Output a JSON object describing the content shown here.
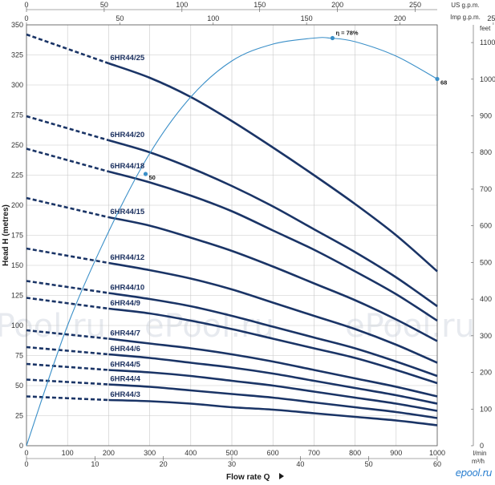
{
  "chart_data": {
    "type": "line",
    "xlabel": "Flow rate Q",
    "ylabel": "Head H  (metres)",
    "x_unit": "l/min",
    "x_unit_bottom": "m³/h",
    "x_unit_top1": "US g.p.m.",
    "x_unit_top2": "Imp g.p.m.",
    "y_unit_right": "feet",
    "xlim": [
      0,
      1000
    ],
    "ylim": [
      0,
      350
    ],
    "x_ticks": [
      0,
      100,
      200,
      300,
      400,
      500,
      600,
      700,
      800,
      900,
      1000
    ],
    "y_ticks": [
      0,
      25,
      50,
      75,
      100,
      125,
      150,
      175,
      200,
      225,
      250,
      275,
      300,
      325,
      350
    ],
    "right_ticks_feet": [
      0,
      100,
      200,
      300,
      400,
      500,
      600,
      700,
      800,
      900,
      1000,
      1100
    ],
    "top_ticks_us_gpm": [
      0,
      50,
      100,
      150,
      200,
      250
    ],
    "top_ticks_imp_gpm": [
      0,
      50,
      100,
      150,
      200,
      250
    ],
    "bottom_ticks_m3h": [
      0,
      10,
      20,
      30,
      40,
      50,
      60
    ],
    "grid": true,
    "series": [
      {
        "name": "6HR44/25",
        "x": [
          0,
          200,
          300,
          400,
          500,
          600,
          700,
          800,
          900,
          1000
        ],
        "y": [
          342,
          318,
          306,
          290,
          270,
          248,
          225,
          201,
          175,
          145
        ],
        "dashed_until": 200
      },
      {
        "name": "6HR44/20",
        "x": [
          0,
          200,
          300,
          400,
          500,
          600,
          700,
          800,
          900,
          1000
        ],
        "y": [
          274,
          254,
          244,
          231,
          216,
          199,
          180,
          161,
          140,
          116
        ],
        "dashed_until": 200
      },
      {
        "name": "6HR44/18",
        "x": [
          0,
          200,
          300,
          400,
          500,
          600,
          700,
          800,
          900,
          1000
        ],
        "y": [
          247,
          228,
          219,
          208,
          195,
          179,
          163,
          145,
          126,
          104
        ],
        "dashed_until": 200
      },
      {
        "name": "6HR44/15",
        "x": [
          0,
          200,
          300,
          400,
          500,
          600,
          700,
          800,
          900,
          1000
        ],
        "y": [
          206,
          190,
          183,
          173,
          162,
          149,
          135,
          121,
          105,
          87
        ],
        "dashed_until": 200
      },
      {
        "name": "6HR44/12",
        "x": [
          0,
          200,
          300,
          400,
          500,
          600,
          700,
          800,
          900,
          1000
        ],
        "y": [
          164,
          152,
          146,
          139,
          130,
          119,
          108,
          97,
          84,
          69
        ],
        "dashed_until": 200
      },
      {
        "name": "6HR44/10",
        "x": [
          0,
          200,
          300,
          400,
          500,
          600,
          700,
          800,
          900,
          1000
        ],
        "y": [
          137,
          127,
          122,
          116,
          108,
          99,
          90,
          81,
          70,
          58
        ],
        "dashed_until": 200
      },
      {
        "name": "6HR44/9",
        "x": [
          0,
          200,
          300,
          400,
          500,
          600,
          700,
          800,
          900,
          1000
        ],
        "y": [
          123,
          114,
          110,
          104,
          97,
          89,
          81,
          73,
          63,
          52
        ],
        "dashed_until": 200
      },
      {
        "name": "6HR44/7",
        "x": [
          0,
          200,
          300,
          400,
          500,
          600,
          700,
          800,
          900,
          1000
        ],
        "y": [
          96,
          89,
          85,
          81,
          76,
          70,
          63,
          56,
          49,
          41
        ],
        "dashed_until": 200
      },
      {
        "name": "6HR44/6",
        "x": [
          0,
          200,
          300,
          400,
          500,
          600,
          700,
          800,
          900,
          1000
        ],
        "y": [
          82,
          76,
          73,
          69,
          65,
          60,
          54,
          48,
          42,
          35
        ],
        "dashed_until": 200
      },
      {
        "name": "6HR44/5",
        "x": [
          0,
          200,
          300,
          400,
          500,
          600,
          700,
          800,
          900,
          1000
        ],
        "y": [
          68,
          63,
          61,
          58,
          54,
          50,
          45,
          40,
          35,
          29
        ],
        "dashed_until": 200
      },
      {
        "name": "6HR44/4",
        "x": [
          0,
          200,
          300,
          400,
          500,
          600,
          700,
          800,
          900,
          1000
        ],
        "y": [
          55,
          51,
          49,
          46,
          43,
          40,
          36,
          32,
          28,
          23
        ],
        "dashed_until": 200
      },
      {
        "name": "6HR44/3",
        "x": [
          0,
          200,
          300,
          400,
          500,
          600,
          700,
          800,
          900,
          1000
        ],
        "y": [
          41,
          38,
          37,
          35,
          32,
          30,
          27,
          24,
          21,
          17
        ],
        "dashed_until": 200
      }
    ],
    "efficiency_curve": {
      "x": [
        0,
        100,
        200,
        300,
        400,
        500,
        600,
        700,
        740,
        800,
        900,
        1000
      ],
      "y": [
        0,
        100,
        178,
        243,
        290,
        320,
        334,
        339,
        339,
        336,
        324,
        305
      ],
      "color": "#3a8fc8",
      "points": [
        {
          "x": 290,
          "y": 226,
          "label": "50"
        },
        {
          "x": 745,
          "y": 339,
          "label": "η = 78%"
        },
        {
          "x": 1000,
          "y": 305,
          "label": "68"
        }
      ]
    },
    "watermark": "ePool.ru"
  },
  "logo_text": "epool.ru",
  "colors": {
    "curve": "#1a3466",
    "efficiency": "#3a8fc8",
    "grid": "#c8c8c8",
    "watermark": "#d4d9e2"
  }
}
